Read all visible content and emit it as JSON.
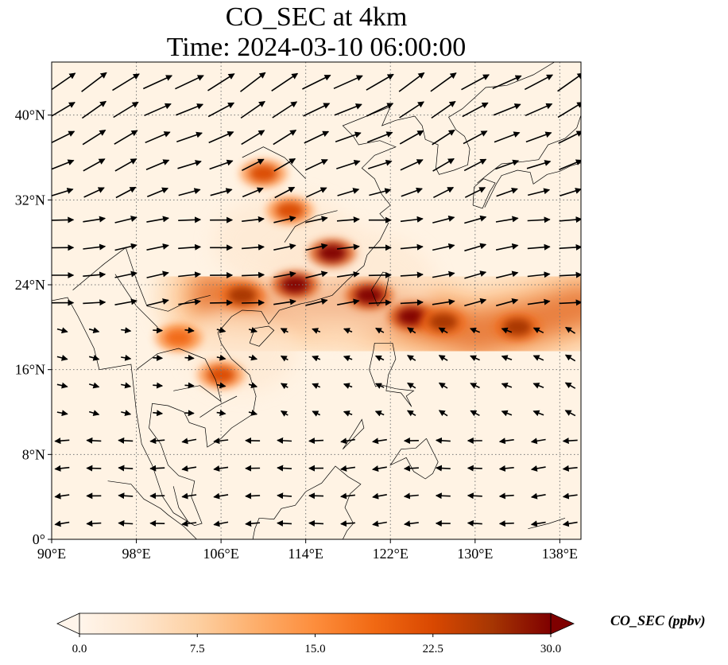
{
  "title_line1": "CO_SEC at 4km",
  "title_line2": "Time: 2024-03-10 06:00:00",
  "map": {
    "lon_range": [
      90,
      140
    ],
    "lat_range": [
      0,
      45
    ],
    "lon_ticks": [
      {
        "value": 90,
        "label": "90°E"
      },
      {
        "value": 98,
        "label": "98°E"
      },
      {
        "value": 106,
        "label": "106°E"
      },
      {
        "value": 114,
        "label": "114°E"
      },
      {
        "value": 122,
        "label": "122°E"
      },
      {
        "value": 130,
        "label": "130°E"
      },
      {
        "value": 138,
        "label": "138°E"
      }
    ],
    "lat_ticks": [
      {
        "value": 0,
        "label": "0°"
      },
      {
        "value": 8,
        "label": "8°N"
      },
      {
        "value": 16,
        "label": "16°N"
      },
      {
        "value": 24,
        "label": "24°N"
      },
      {
        "value": 32,
        "label": "32°N"
      },
      {
        "value": 40,
        "label": "40°N"
      }
    ],
    "gridlines": true,
    "field_colors": [
      "#fff5eb",
      "#fee6ce",
      "#fdd0a2",
      "#fdae6b",
      "#f16913",
      "#d94801",
      "#a63603",
      "#7f0000"
    ],
    "plume_centerline": [
      [
        105,
        23
      ],
      [
        112,
        22.5
      ],
      [
        118,
        22.5
      ],
      [
        124,
        21
      ],
      [
        130,
        19.5
      ],
      [
        135,
        20.5
      ],
      [
        140,
        22
      ]
    ],
    "hotspots": [
      {
        "lon": 108,
        "lat": 23,
        "value": 26
      },
      {
        "lon": 113,
        "lat": 24,
        "value": 30
      },
      {
        "lon": 116.5,
        "lat": 27,
        "value": 30
      },
      {
        "lon": 120,
        "lat": 23,
        "value": 30
      },
      {
        "lon": 124,
        "lat": 21,
        "value": 30
      },
      {
        "lon": 127,
        "lat": 20.5,
        "value": 28
      },
      {
        "lon": 134,
        "lat": 20,
        "value": 27
      },
      {
        "lon": 112.5,
        "lat": 31,
        "value": 22
      },
      {
        "lon": 110,
        "lat": 34.5,
        "value": 24
      },
      {
        "lon": 106,
        "lat": 15.5,
        "value": 23
      },
      {
        "lon": 102,
        "lat": 19,
        "value": 20
      }
    ]
  },
  "colorbar": {
    "min": 0.0,
    "max": 30.0,
    "ticks": [
      "0.0",
      "7.5",
      "15.0",
      "22.5",
      "30.0"
    ],
    "label": "CO_SEC (ppbv)",
    "colors": [
      "#fff5eb",
      "#fee6ce",
      "#fdd0a2",
      "#fdae6b",
      "#fd8d3c",
      "#f16913",
      "#d94801",
      "#a63603",
      "#7f0000"
    ]
  }
}
